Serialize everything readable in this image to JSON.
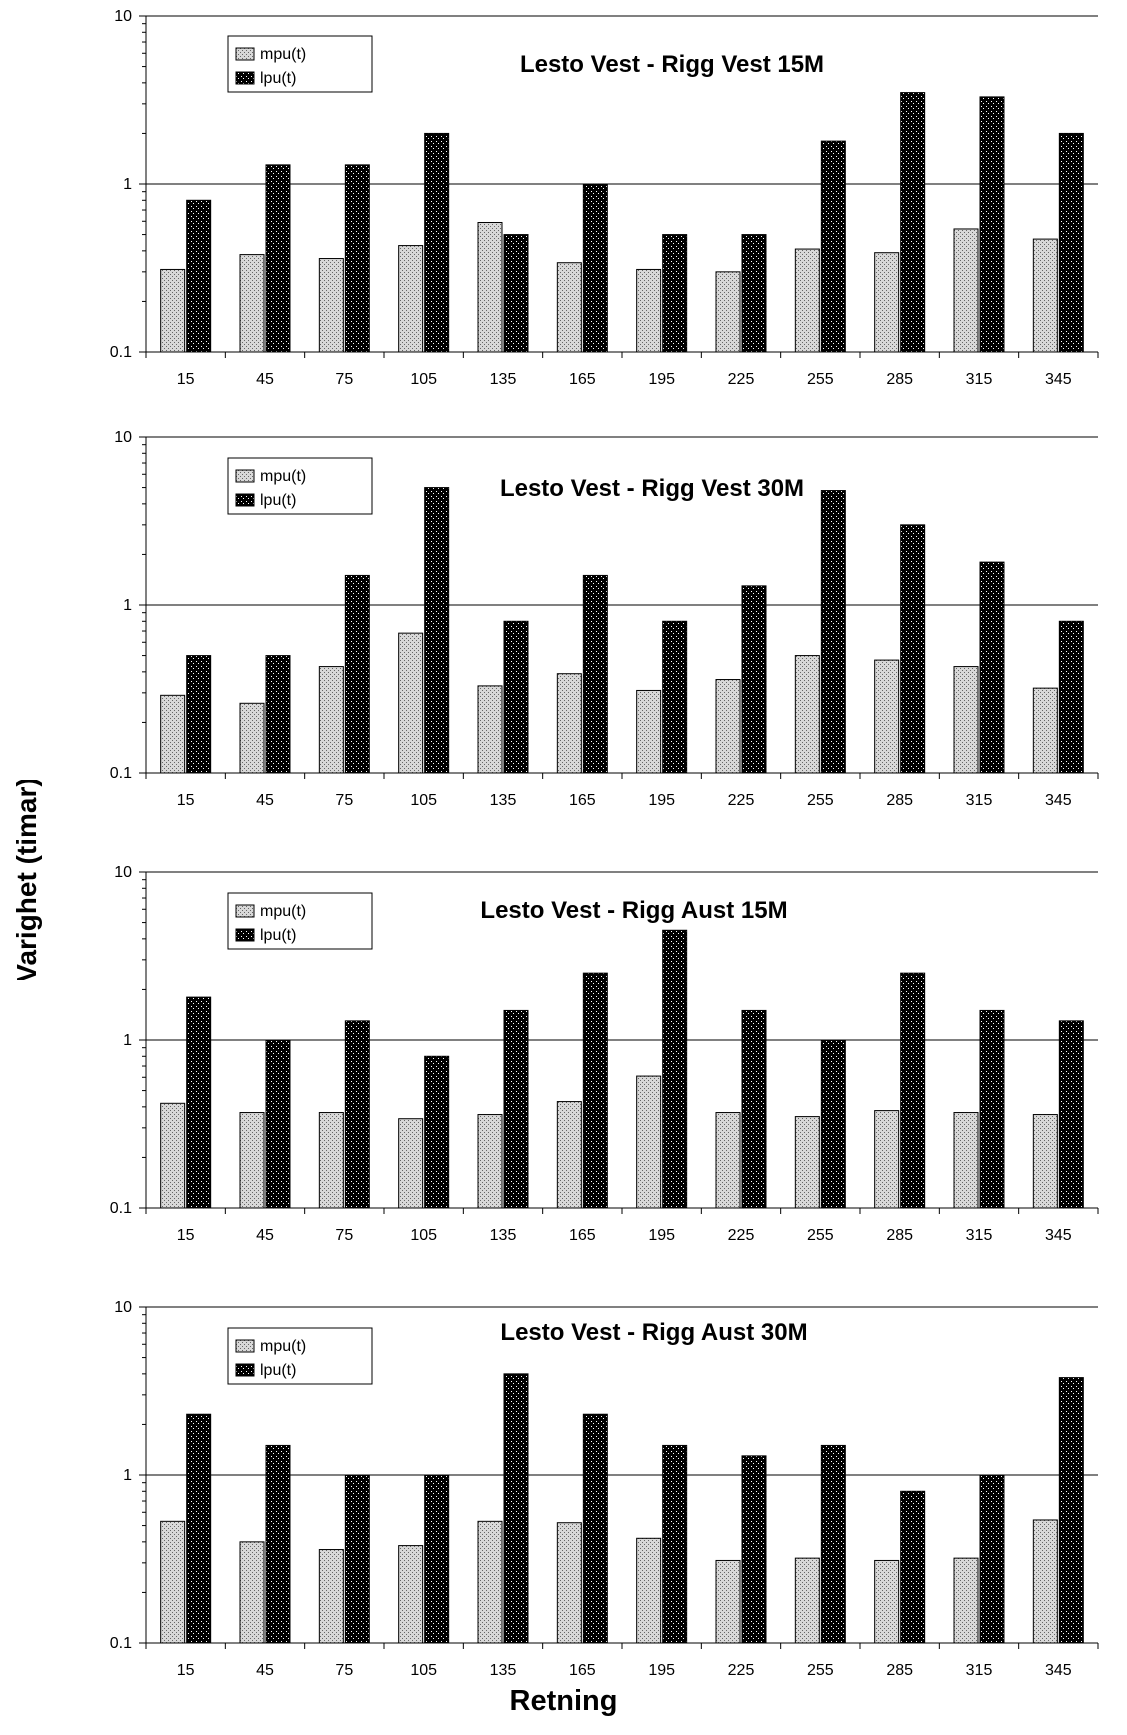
{
  "figure": {
    "ylabel": "Varighet (timar)",
    "xlabel": "Retning"
  },
  "colors": {
    "background": "#ffffff",
    "mpu_fill": "#d4d4d4",
    "lpu_fill": "#000000",
    "gridline": "#000000"
  },
  "chart_data": [
    {
      "type": "bar",
      "title": "Lesto Vest - Rigg Vest 15M",
      "y_scale": "log",
      "ylim": [
        0.1,
        10
      ],
      "yticks": [
        "10",
        "1",
        "0.1"
      ],
      "categories": [
        "15",
        "45",
        "75",
        "105",
        "135",
        "165",
        "195",
        "225",
        "255",
        "285",
        "315",
        "345"
      ],
      "grid": "major horizontal",
      "legend_position": "top-left",
      "series": [
        {
          "name": "mpu(t)",
          "values": [
            0.31,
            0.38,
            0.36,
            0.43,
            0.59,
            0.34,
            0.31,
            0.3,
            0.41,
            0.39,
            0.54,
            0.47
          ]
        },
        {
          "name": "lpu(t)",
          "values": [
            0.8,
            1.3,
            1.3,
            2.0,
            0.5,
            1.0,
            0.5,
            0.5,
            1.8,
            3.5,
            3.3,
            2.0
          ]
        }
      ]
    },
    {
      "type": "bar",
      "title": "Lesto Vest - Rigg Vest 30M",
      "y_scale": "log",
      "ylim": [
        0.1,
        10
      ],
      "yticks": [
        "10",
        "1",
        "0.1"
      ],
      "categories": [
        "15",
        "45",
        "75",
        "105",
        "135",
        "165",
        "195",
        "225",
        "255",
        "285",
        "315",
        "345"
      ],
      "grid": "major horizontal",
      "legend_position": "top-left",
      "series": [
        {
          "name": "mpu(t)",
          "values": [
            0.29,
            0.26,
            0.43,
            0.68,
            0.33,
            0.39,
            0.31,
            0.36,
            0.5,
            0.47,
            0.43,
            0.32
          ]
        },
        {
          "name": "lpu(t)",
          "values": [
            0.5,
            0.5,
            1.5,
            5.0,
            0.8,
            1.5,
            0.8,
            1.3,
            4.8,
            3.0,
            1.8,
            0.8
          ]
        }
      ]
    },
    {
      "type": "bar",
      "title": "Lesto Vest - Rigg Aust 15M",
      "y_scale": "log",
      "ylim": [
        0.1,
        10
      ],
      "yticks": [
        "10",
        "1",
        "0.1"
      ],
      "categories": [
        "15",
        "45",
        "75",
        "105",
        "135",
        "165",
        "195",
        "225",
        "255",
        "285",
        "315",
        "345"
      ],
      "grid": "major horizontal",
      "legend_position": "top-left",
      "series": [
        {
          "name": "mpu(t)",
          "values": [
            0.42,
            0.37,
            0.37,
            0.34,
            0.36,
            0.43,
            0.61,
            0.37,
            0.35,
            0.38,
            0.37,
            0.36
          ]
        },
        {
          "name": "lpu(t)",
          "values": [
            1.8,
            1.0,
            1.3,
            0.8,
            1.5,
            2.5,
            4.5,
            1.5,
            1.0,
            2.5,
            1.5,
            1.3
          ]
        }
      ]
    },
    {
      "type": "bar",
      "title": "Lesto Vest - Rigg Aust 30M",
      "y_scale": "log",
      "ylim": [
        0.1,
        10
      ],
      "yticks": [
        "10",
        "1",
        "0.1"
      ],
      "categories": [
        "15",
        "45",
        "75",
        "105",
        "135",
        "165",
        "195",
        "225",
        "255",
        "285",
        "315",
        "345"
      ],
      "grid": "major horizontal",
      "legend_position": "top-left",
      "series": [
        {
          "name": "mpu(t)",
          "values": [
            0.53,
            0.4,
            0.36,
            0.38,
            0.53,
            0.52,
            0.42,
            0.31,
            0.32,
            0.31,
            0.32,
            0.54
          ]
        },
        {
          "name": "lpu(t)",
          "values": [
            2.3,
            1.5,
            1.0,
            1.0,
            4.0,
            2.3,
            1.5,
            1.3,
            1.5,
            0.8,
            1.0,
            3.8
          ]
        }
      ]
    }
  ]
}
